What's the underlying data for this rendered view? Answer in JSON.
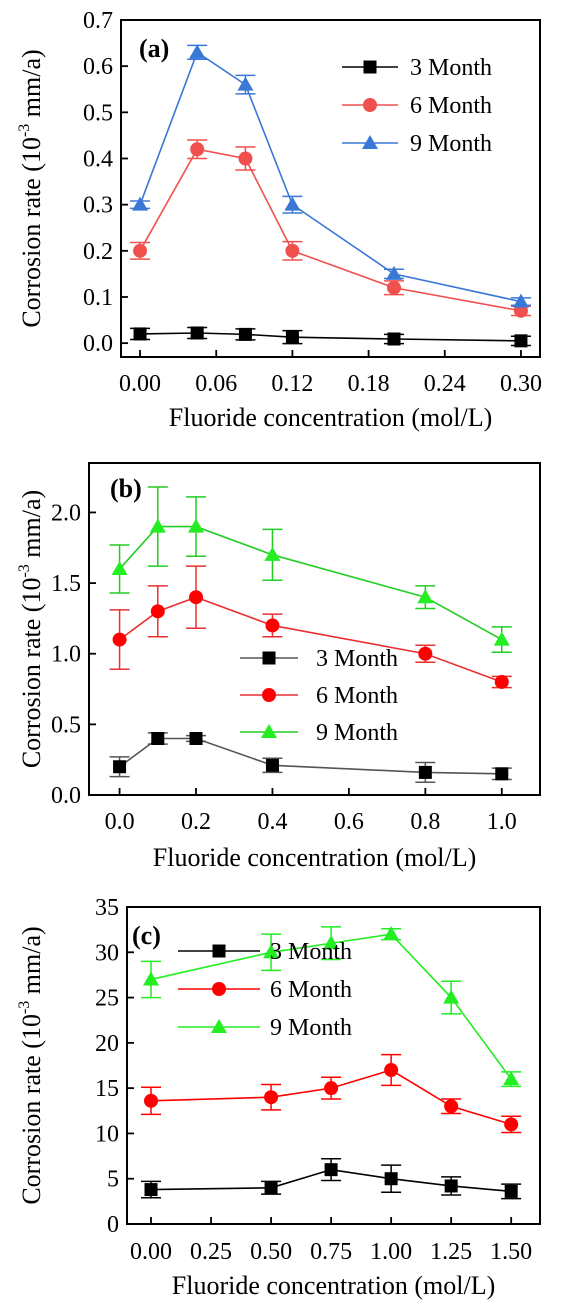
{
  "chart_data": [
    {
      "type": "line",
      "panel_label": "(a)",
      "xlabel": "Fluoride concentration (mol/L)",
      "ylabel_prefix": "Corrosion rate (10",
      "ylabel_exp": "-3",
      "ylabel_suffix": " mm/a)",
      "xlim": [
        -0.015,
        0.315
      ],
      "ylim": [
        -0.03,
        0.7
      ],
      "xticks": [
        0.0,
        0.06,
        0.12,
        0.18,
        0.24,
        0.3
      ],
      "xtick_labels": [
        "0.00",
        "0.06",
        "0.12",
        "0.18",
        "0.24",
        "0.30"
      ],
      "yticks": [
        0.0,
        0.1,
        0.2,
        0.3,
        0.4,
        0.5,
        0.6,
        0.7
      ],
      "ytick_labels": [
        "0.0",
        "0.1",
        "0.2",
        "0.3",
        "0.4",
        "0.5",
        "0.6",
        "0.7"
      ],
      "legend_position": "top-right",
      "x": [
        0.0,
        0.045,
        0.083,
        0.12,
        0.2,
        0.3
      ],
      "series": [
        {
          "name": "3 Month",
          "marker": "square",
          "color": "#000000",
          "line_color": "#000000",
          "values": [
            0.02,
            0.022,
            0.019,
            0.013,
            0.009,
            0.005
          ],
          "errors": [
            0.012,
            0.012,
            0.012,
            0.014,
            0.01,
            0.01
          ]
        },
        {
          "name": "6 Month",
          "marker": "circle",
          "color": "#f0504e",
          "line_color": "#f0504e",
          "values": [
            0.2,
            0.42,
            0.4,
            0.2,
            0.12,
            0.07
          ],
          "errors": [
            0.018,
            0.02,
            0.025,
            0.02,
            0.015,
            0.01
          ]
        },
        {
          "name": "9 Month",
          "marker": "triangle",
          "color": "#3a78d6",
          "line_color": "#3a78d6",
          "values": [
            0.3,
            0.63,
            0.56,
            0.3,
            0.15,
            0.09
          ],
          "errors": [
            0.008,
            0.015,
            0.02,
            0.018,
            0.01,
            0.008
          ]
        }
      ]
    },
    {
      "type": "line",
      "panel_label": "(b)",
      "xlabel": "Fluoride concentration (mol/L)",
      "ylabel_prefix": "Corrosion rate (10",
      "ylabel_exp": "-3",
      "ylabel_suffix": " mm/a)",
      "xlim": [
        -0.08,
        1.1
      ],
      "ylim": [
        0.0,
        2.35
      ],
      "xticks": [
        0.0,
        0.2,
        0.4,
        0.6,
        0.8,
        1.0
      ],
      "xtick_labels": [
        "0.0",
        "0.2",
        "0.4",
        "0.6",
        "0.8",
        "1.0"
      ],
      "yticks": [
        0.0,
        0.5,
        1.0,
        1.5,
        2.0
      ],
      "ytick_labels": [
        "0.0",
        "0.5",
        "1.0",
        "1.5",
        "2.0"
      ],
      "legend_position": "center",
      "x": [
        0.0,
        0.1,
        0.2,
        0.4,
        0.8,
        1.0
      ],
      "series": [
        {
          "name": "3 Month",
          "marker": "square",
          "color": "#000000",
          "line_color": "#555555",
          "values": [
            0.2,
            0.4,
            0.4,
            0.21,
            0.16,
            0.15
          ],
          "errors": [
            0.07,
            0.04,
            0.02,
            0.05,
            0.07,
            0.04
          ]
        },
        {
          "name": "6 Month",
          "marker": "circle",
          "color": "#ff0000",
          "line_color": "#e83030",
          "values": [
            1.1,
            1.3,
            1.4,
            1.2,
            1.0,
            0.8
          ],
          "errors": [
            0.21,
            0.18,
            0.22,
            0.08,
            0.06,
            0.04
          ]
        },
        {
          "name": "9 Month",
          "marker": "triangle",
          "color": "#22ee22",
          "line_color": "#22cc22",
          "values": [
            1.6,
            1.9,
            1.9,
            1.7,
            1.4,
            1.1
          ],
          "errors": [
            0.17,
            0.28,
            0.21,
            0.18,
            0.08,
            0.09
          ]
        }
      ]
    },
    {
      "type": "line",
      "panel_label": "(c)",
      "xlabel": "Fluoride concentration (mol/L)",
      "ylabel_prefix": "Corrosion rate (10",
      "ylabel_exp": "-3",
      "ylabel_suffix": " mm/a)",
      "xlim": [
        -0.1,
        1.62
      ],
      "ylim": [
        0,
        35
      ],
      "xticks": [
        0.0,
        0.25,
        0.5,
        0.75,
        1.0,
        1.25,
        1.5
      ],
      "xtick_labels": [
        "0.00",
        "0.25",
        "0.50",
        "0.75",
        "1.00",
        "1.25",
        "1.50"
      ],
      "yticks": [
        0,
        5,
        10,
        15,
        20,
        25,
        30,
        35
      ],
      "ytick_labels": [
        "0",
        "5",
        "10",
        "15",
        "20",
        "25",
        "30",
        "35"
      ],
      "legend_position": "top-left",
      "x": [
        0.0,
        0.5,
        0.75,
        1.0,
        1.25,
        1.5
      ],
      "series": [
        {
          "name": "3 Month",
          "marker": "square",
          "color": "#000000",
          "line_color": "#000000",
          "values": [
            3.8,
            4.0,
            6.0,
            5.0,
            4.2,
            3.6
          ],
          "errors": [
            0.9,
            0.7,
            1.2,
            1.5,
            1.0,
            0.8
          ]
        },
        {
          "name": "6 Month",
          "marker": "circle",
          "color": "#ff0000",
          "line_color": "#ff0000",
          "values": [
            13.6,
            14.0,
            15.0,
            17.0,
            13.0,
            11.0
          ],
          "errors": [
            1.5,
            1.4,
            1.2,
            1.7,
            0.8,
            0.9
          ]
        },
        {
          "name": "9 Month",
          "marker": "triangle",
          "color": "#22ee22",
          "line_color": "#22ee22",
          "values": [
            27.0,
            30.0,
            31.0,
            32.0,
            25.0,
            16.0
          ],
          "errors": [
            2.0,
            2.0,
            1.8,
            0.6,
            1.8,
            0.8
          ]
        }
      ]
    }
  ]
}
